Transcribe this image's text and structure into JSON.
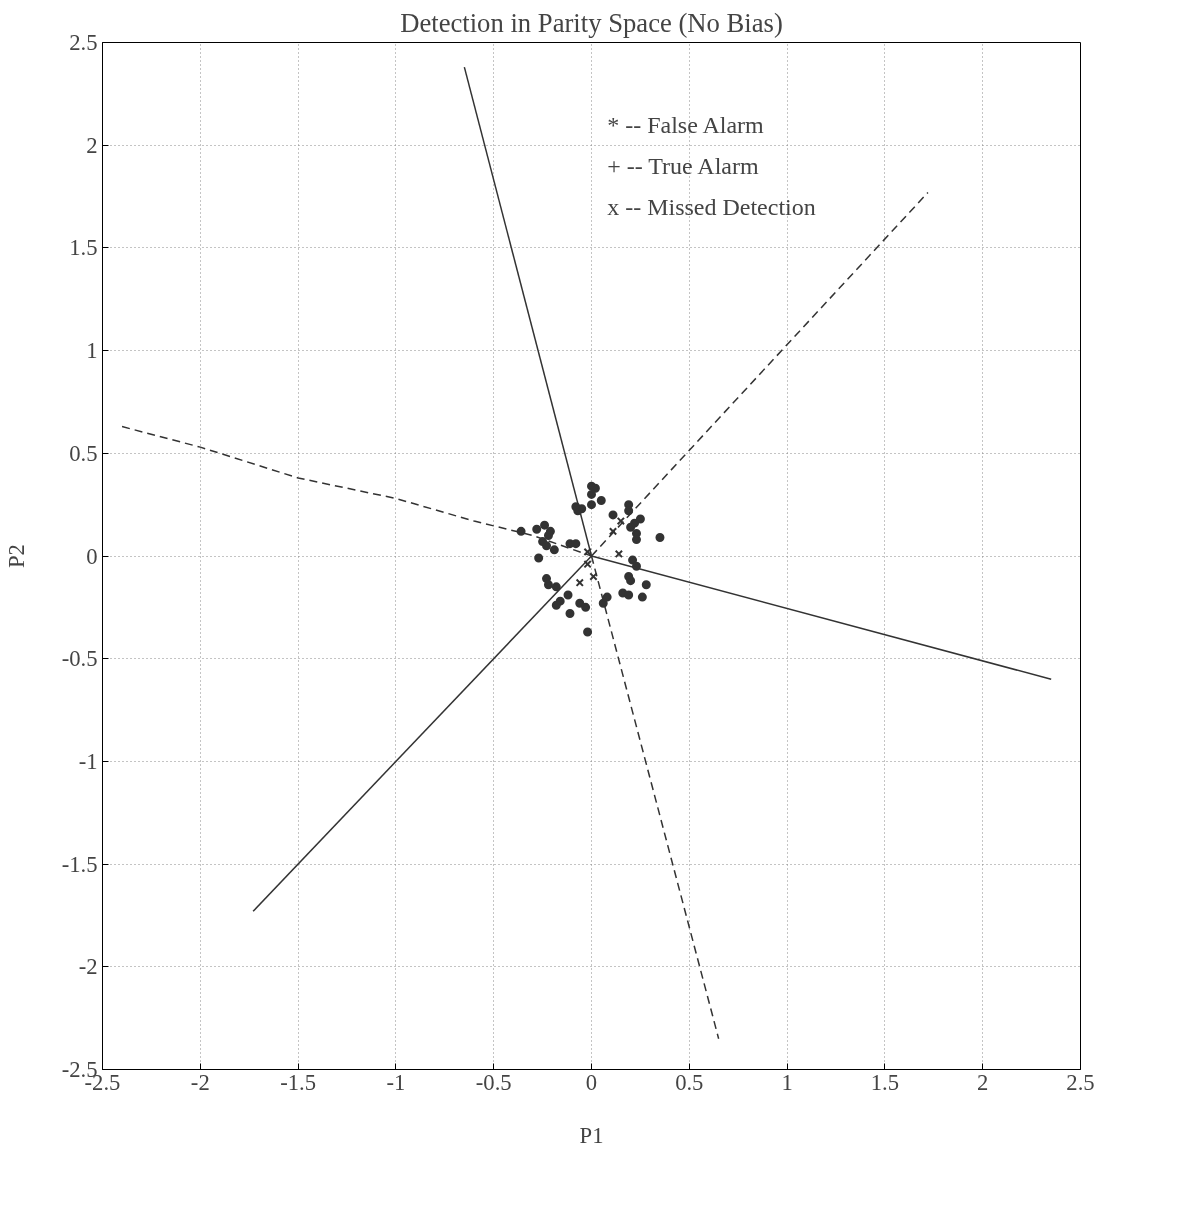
{
  "chart_data": {
    "type": "scatter",
    "title": "Detection in Parity Space (No Bias)",
    "xlabel": "P1",
    "ylabel": "P2",
    "xlim": [
      -2.5,
      2.5
    ],
    "ylim": [
      -2.5,
      2.5
    ],
    "xticks": [
      -2.5,
      -2,
      -1.5,
      -1,
      -0.5,
      0,
      0.5,
      1,
      1.5,
      2,
      2.5
    ],
    "yticks": [
      -2.5,
      -2,
      -1.5,
      -1,
      -0.5,
      0,
      0.5,
      1,
      1.5,
      2,
      2.5
    ],
    "grid": true,
    "annotations": [
      "* -- False Alarm",
      "+ -- True Alarm",
      "x -- Missed Detection"
    ],
    "series": [
      {
        "marker": "circle",
        "color": "#333333",
        "x": [
          0.0,
          0.02,
          0.0,
          0.05,
          0.0,
          -0.08,
          -0.05,
          -0.07,
          0.11,
          0.19,
          0.19,
          0.22,
          0.25,
          0.2,
          0.23,
          0.23,
          0.35,
          -0.24,
          -0.28,
          -0.21,
          -0.22,
          -0.25,
          -0.23,
          -0.19,
          -0.11,
          -0.08,
          -0.27,
          -0.36,
          0.21,
          0.23,
          0.19,
          0.2,
          0.28,
          0.16,
          0.19,
          0.26,
          -0.23,
          -0.22,
          -0.18,
          -0.12,
          -0.16,
          -0.18,
          -0.06,
          -0.03,
          0.06,
          0.08,
          -0.11,
          -0.02
        ],
        "values": [
          0.34,
          0.33,
          0.3,
          0.27,
          0.25,
          0.24,
          0.23,
          0.22,
          0.2,
          0.25,
          0.22,
          0.16,
          0.18,
          0.14,
          0.11,
          0.08,
          0.09,
          0.15,
          0.13,
          0.12,
          0.1,
          0.07,
          0.05,
          0.03,
          0.06,
          0.06,
          -0.01,
          0.12,
          -0.02,
          -0.05,
          -0.1,
          -0.12,
          -0.14,
          -0.18,
          -0.19,
          -0.2,
          -0.11,
          -0.14,
          -0.15,
          -0.19,
          -0.22,
          -0.24,
          -0.23,
          -0.25,
          -0.23,
          -0.2,
          -0.28,
          -0.37
        ]
      },
      {
        "marker": "cross",
        "color": "#333333",
        "x": [
          0.15,
          0.11,
          0.14,
          -0.02,
          -0.02,
          0.01,
          -0.06
        ],
        "values": [
          0.17,
          0.12,
          0.01,
          0.02,
          -0.04,
          -0.1,
          -0.13
        ]
      },
      {
        "type": "line",
        "line_style": "solid",
        "color": "#333333",
        "x": [
          -0.65,
          0.0
        ],
        "values": [
          2.38,
          0.0
        ]
      },
      {
        "type": "line",
        "line_style": "dashed",
        "color": "#333333",
        "x": [
          0.0,
          0.65
        ],
        "values": [
          0.0,
          -2.35
        ]
      },
      {
        "type": "line",
        "line_style": "solid",
        "color": "#333333",
        "x": [
          0.0,
          2.35
        ],
        "values": [
          0.0,
          -0.6
        ]
      },
      {
        "type": "line",
        "line_style": "dashed",
        "color": "#333333",
        "x": [
          -2.4,
          -2.0,
          -1.5,
          -1.0,
          -0.6,
          -0.3,
          0.0
        ],
        "values": [
          0.63,
          0.53,
          0.38,
          0.28,
          0.17,
          0.1,
          0.0
        ]
      },
      {
        "type": "line",
        "line_style": "solid",
        "color": "#333333",
        "x": [
          -1.73,
          0.0
        ],
        "values": [
          -1.73,
          0.0
        ]
      },
      {
        "type": "line",
        "line_style": "dashed",
        "color": "#333333",
        "x": [
          0.0,
          1.72
        ],
        "values": [
          0.0,
          1.77
        ]
      }
    ]
  }
}
